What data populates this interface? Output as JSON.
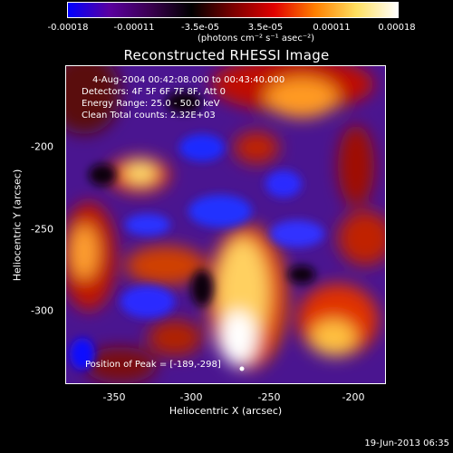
{
  "colorbar": {
    "ticks": [
      "-0.00018",
      "-0.00011",
      "-3.5e-05",
      "3.5e-05",
      "0.00011",
      "0.00018"
    ],
    "units": "(photons cm⁻² s⁻¹ asec⁻²)",
    "colors": [
      "#0000ff",
      "#5a00a0",
      "#3a0050",
      "#000000",
      "#7a0000",
      "#e00000",
      "#ff8000",
      "#ffe060",
      "#ffffff"
    ]
  },
  "title": "Reconstructed RHESSI Image",
  "annotations": {
    "time": "4-Aug-2004 00:42:08.000 to 00:43:40.000",
    "detectors": "Detectors: 4F 5F 6F 7F 8F, Att 0",
    "energy": "Energy Range: 25.0 - 50.0 keV",
    "clean": "Clean    Total counts: 2.32E+03",
    "peak": "Position of Peak = [-189,-298]"
  },
  "x_axis": {
    "label": "Heliocentric X (arcsec)",
    "ticks": [
      "-350",
      "-300",
      "-250",
      "-200"
    ]
  },
  "y_axis": {
    "label": "Heliocentric Y (arcsec)",
    "ticks": [
      "-200",
      "-250",
      "-300"
    ]
  },
  "datestamp": "19-Jun-2013 06:35"
}
